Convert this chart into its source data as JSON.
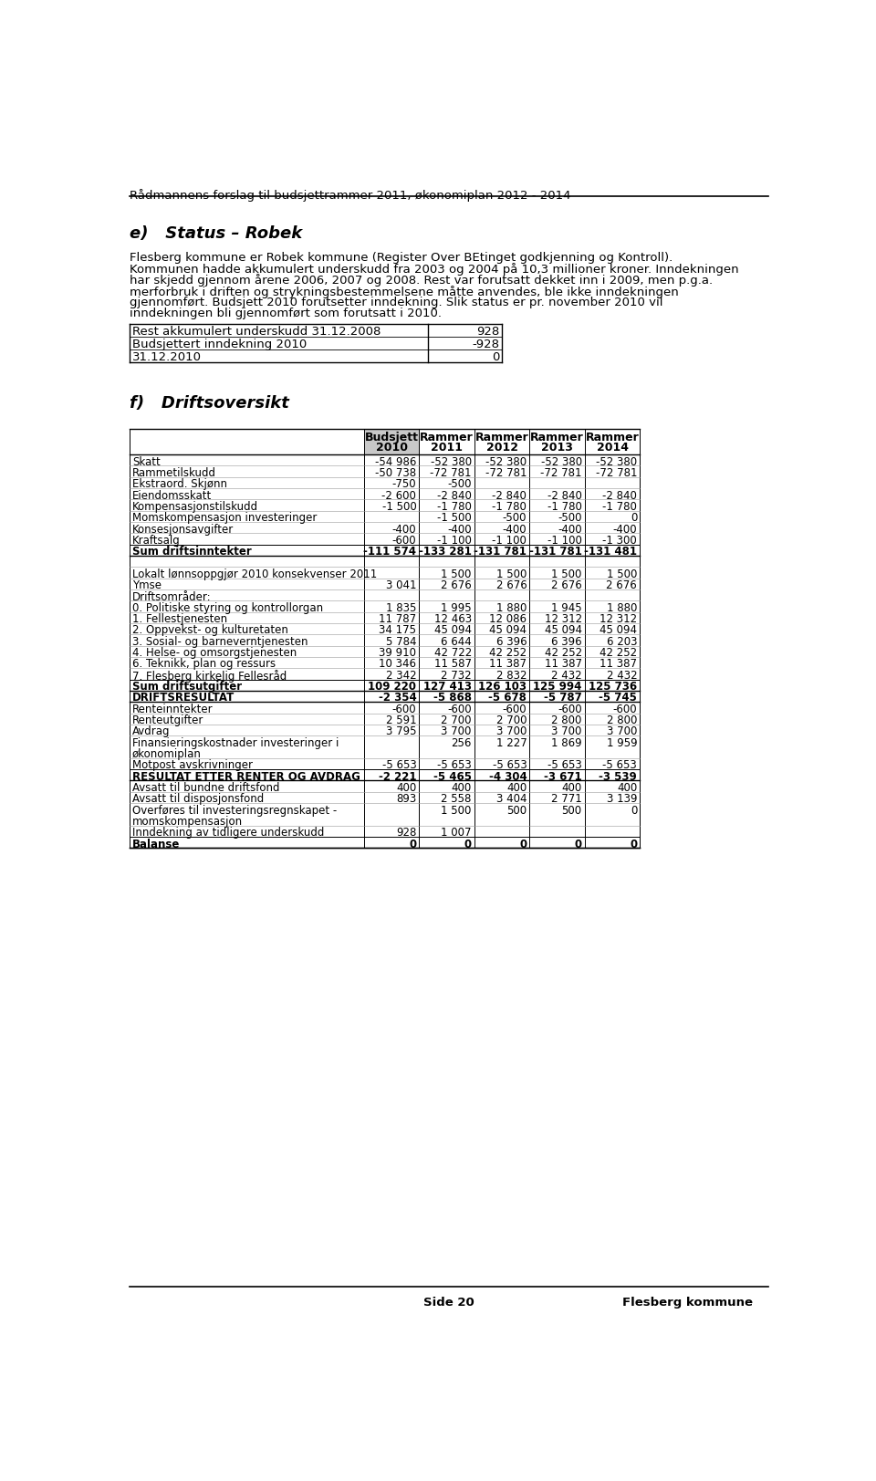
{
  "header_title": "Rådmannens forslag til budsjettrammer 2011, økonomiplan 2012 - 2014",
  "section_e_title": "e)   Status – Robek",
  "section_e_text": [
    "Flesberg kommune er Robek kommune (Register Over BEtinget godkjenning og Kontroll).",
    "Kommunen hadde akkumulert underskudd fra 2003 og 2004 på 10,3 millioner kroner. Inndekningen",
    "har skjedd gjennom årene 2006, 2007 og 2008. Rest var forutsatt dekket inn i 2009, men p.g.a.",
    "merforbruk i driften og strykningsbestemmelsene måtte anvendes, ble ikke inndekningen",
    "gjennomført. Budsjett 2010 forutsetter inndekning. Slik status er pr. november 2010 vil",
    "inndekningen bli gjennomført som forutsatt i 2010."
  ],
  "small_table_rows": [
    [
      "Rest akkumulert underskudd 31.12.2008",
      "928"
    ],
    [
      "Budsjettert inndekning 2010",
      "-928"
    ],
    [
      "31.12.2010",
      "0"
    ]
  ],
  "section_f_title": "f)   Driftsoversikt",
  "table_header": [
    "",
    "Budsjett\n2010",
    "Rammer\n2011",
    "Rammer\n2012",
    "Rammer\n2013",
    "Rammer\n2014"
  ],
  "table_rows": [
    [
      "Skatt",
      "-54 986",
      "-52 380",
      "-52 380",
      "-52 380",
      "-52 380"
    ],
    [
      "Rammetilskudd",
      "-50 738",
      "-72 781",
      "-72 781",
      "-72 781",
      "-72 781"
    ],
    [
      "Ekstraord. Skjønn",
      "-750",
      "-500",
      "",
      "",
      ""
    ],
    [
      "Eiendomsskatt",
      "-2 600",
      "-2 840",
      "-2 840",
      "-2 840",
      "-2 840"
    ],
    [
      "Kompensasjonstilskudd",
      "-1 500",
      "-1 780",
      "-1 780",
      "-1 780",
      "-1 780"
    ],
    [
      "Momskompensasjon investeringer",
      "",
      "-1 500",
      "-500",
      "-500",
      "0"
    ],
    [
      "Konsesjonsavgifter",
      "-400",
      "-400",
      "-400",
      "-400",
      "-400"
    ],
    [
      "Kraftsalg",
      "-600",
      "-1 100",
      "-1 100",
      "-1 100",
      "-1 300"
    ],
    [
      "Sum driftsinntekter",
      "-111 574",
      "-133 281",
      "-131 781",
      "-131 781",
      "-131 481"
    ],
    [
      "",
      "",
      "",
      "",
      "",
      ""
    ],
    [
      "Lokalt lønnsoppgjør 2010 konsekvenser 2011",
      "",
      "1 500",
      "1 500",
      "1 500",
      "1 500"
    ],
    [
      "Ymse",
      "3 041",
      "2 676",
      "2 676",
      "2 676",
      "2 676"
    ],
    [
      "Driftsområder:",
      "",
      "",
      "",
      "",
      ""
    ],
    [
      "0. Politiske styring og kontrollorgan",
      "1 835",
      "1 995",
      "1 880",
      "1 945",
      "1 880"
    ],
    [
      "1. Fellestjenesten",
      "11 787",
      "12 463",
      "12 086",
      "12 312",
      "12 312"
    ],
    [
      "2. Oppvekst- og kulturetaten",
      "34 175",
      "45 094",
      "45 094",
      "45 094",
      "45 094"
    ],
    [
      "3. Sosial- og barneverntjenesten",
      "5 784",
      "6 644",
      "6 396",
      "6 396",
      "6 203"
    ],
    [
      "4. Helse- og omsorgstjenesten",
      "39 910",
      "42 722",
      "42 252",
      "42 252",
      "42 252"
    ],
    [
      "6. Teknikk, plan og ressurs",
      "10 346",
      "11 587",
      "11 387",
      "11 387",
      "11 387"
    ],
    [
      "7. Flesberg kirkelig Fellesråd",
      "2 342",
      "2 732",
      "2 832",
      "2 432",
      "2 432"
    ],
    [
      "Sum driftsutgifter",
      "109 220",
      "127 413",
      "126 103",
      "125 994",
      "125 736"
    ],
    [
      "DRIFTSRESULTAT",
      "-2 354",
      "-5 868",
      "-5 678",
      "-5 787",
      "-5 745"
    ],
    [
      "Renteinntekter",
      "-600",
      "-600",
      "-600",
      "-600",
      "-600"
    ],
    [
      "Renteutgifter",
      "2 591",
      "2 700",
      "2 700",
      "2 800",
      "2 800"
    ],
    [
      "Avdrag",
      "3 795",
      "3 700",
      "3 700",
      "3 700",
      "3 700"
    ],
    [
      "Finansieringskostnader investeringer i\nøkonomiplan",
      "",
      "256",
      "1 227",
      "1 869",
      "1 959"
    ],
    [
      "Motpost avskrivninger",
      "-5 653",
      "-5 653",
      "-5 653",
      "-5 653",
      "-5 653"
    ],
    [
      "RESULTAT ETTER RENTER OG AVDRAG",
      "-2 221",
      "-5 465",
      "-4 304",
      "-3 671",
      "-3 539"
    ],
    [
      "Avsatt til bundne driftsfond",
      "400",
      "400",
      "400",
      "400",
      "400"
    ],
    [
      "Avsatt til disposjonsfond",
      "893",
      "2 558",
      "3 404",
      "2 771",
      "3 139"
    ],
    [
      "Overføres til investeringsregnskapet -\nmomskompensasjon",
      "",
      "1 500",
      "500",
      "500",
      "0"
    ],
    [
      "Inndekning av tidligere underskudd",
      "928",
      "1 007",
      "",
      "",
      ""
    ],
    [
      "Balanse",
      "0",
      "0",
      "0",
      "0",
      "0"
    ]
  ],
  "bold_rows": [
    8,
    20,
    21,
    27,
    32
  ],
  "footer_left": "Side 20",
  "footer_right": "Flesberg kommune",
  "bg_color": "#ffffff",
  "text_color": "#000000"
}
